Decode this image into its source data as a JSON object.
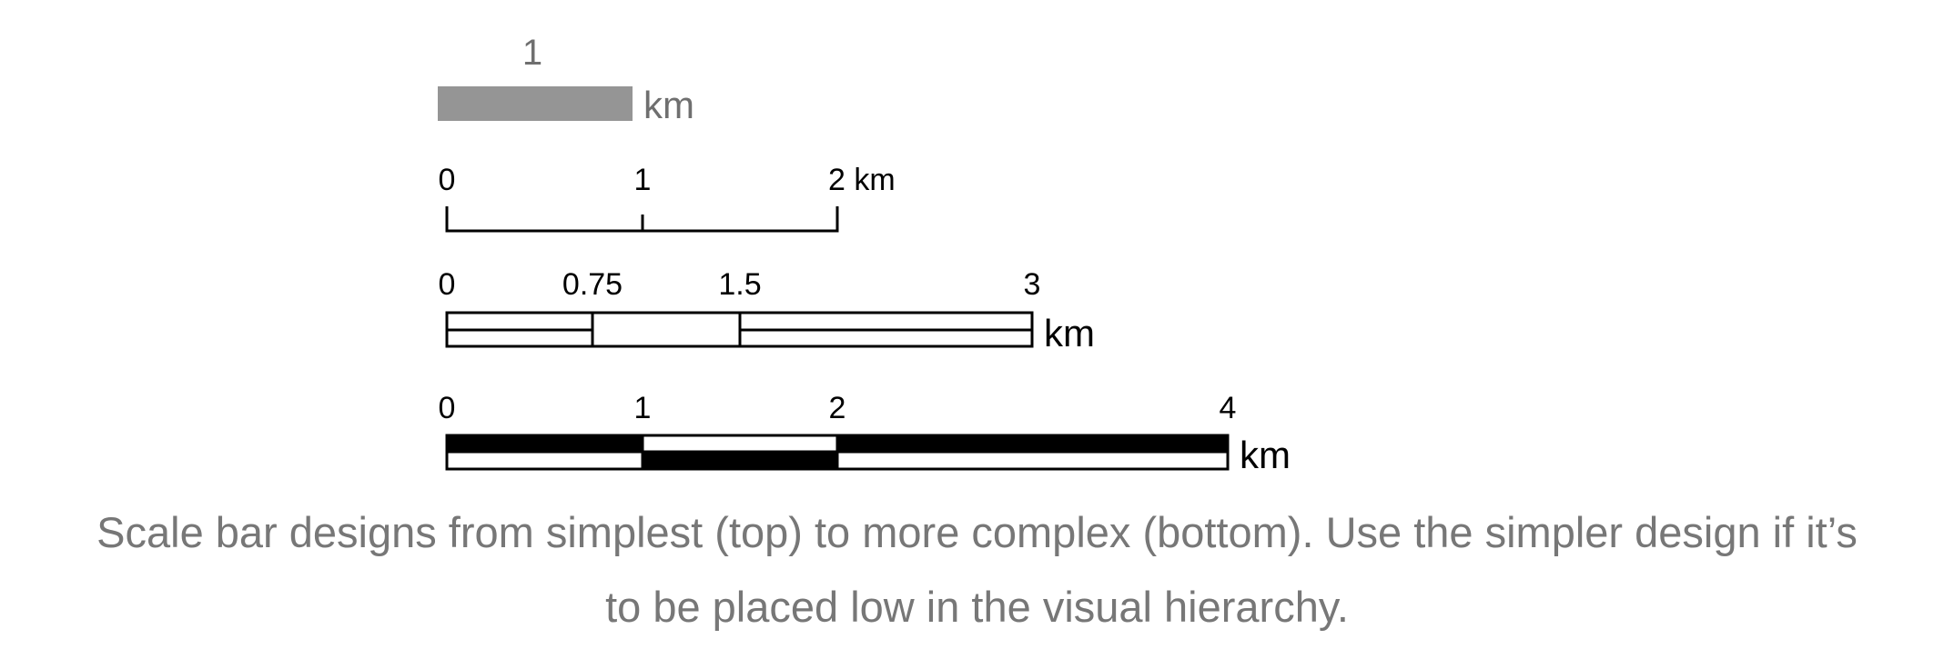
{
  "colors": {
    "gray_bar": "#959595",
    "gray_text": "#6f6f6f",
    "black": "#000000",
    "white": "#ffffff",
    "caption": "#777777"
  },
  "scale_bars": {
    "simple": {
      "label": "1",
      "unit": "km"
    },
    "line_ticks": {
      "ticks": [
        "0",
        "1",
        "2 km"
      ]
    },
    "double_outline": {
      "ticks": [
        "0",
        "0.75",
        "1.5",
        "3"
      ],
      "unit": "km"
    },
    "checkered": {
      "ticks": [
        "0",
        "1",
        "2",
        "4"
      ],
      "unit": "km"
    }
  },
  "caption": {
    "line1": "Scale bar designs from simplest (top) to more complex (bottom). Use the simpler design if it’s",
    "line2": "to be placed low in the visual hierarchy."
  }
}
